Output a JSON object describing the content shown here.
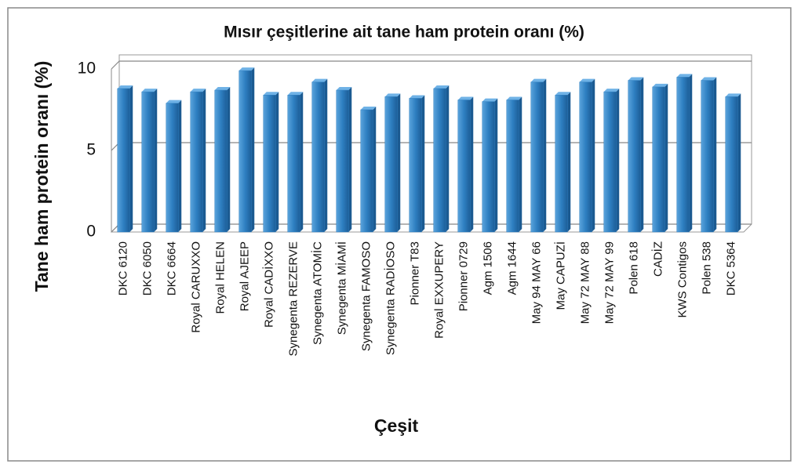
{
  "chart_data": {
    "type": "bar",
    "title": "Mısır çeşitlerine ait tane ham protein oranı (%)",
    "x_label": "Çeşit",
    "y_label": "Tane ham protein oranı (%)",
    "categories": [
      "DKC 6120",
      "DKC 6050",
      "DKC 6664",
      "Royal CARUXXO",
      "Royal HELEN",
      "Royal AJEEP",
      "Royal CADİXXO",
      "Synegenta REZERVE",
      "Synegenta ATOMİC",
      "Synegenta MİAMİ",
      "Synegenta FAMOSO",
      "Synegenta RADİOSO",
      "Pionner T83",
      "Royal EXXUPERY",
      "Pionner 0729",
      "Agm 1506",
      "Agm 1644",
      "May 94 MAY 66",
      "May CAPUZİ",
      "May 72 MAY 88",
      "May 72 MAY 99",
      "Polen 618",
      "CADİZ",
      "KWS Contigos",
      "Polen 538",
      "DKC 5364"
    ],
    "values": [
      8.8,
      8.6,
      7.9,
      8.6,
      8.7,
      9.9,
      8.4,
      8.4,
      9.2,
      8.7,
      7.5,
      8.3,
      8.2,
      8.8,
      8.1,
      8.0,
      8.1,
      9.2,
      8.4,
      9.2,
      8.6,
      9.3,
      8.9,
      9.5,
      9.3,
      8.3
    ],
    "color": "#2e7fc1",
    "ylim": [
      0,
      10
    ],
    "yticks": [
      0,
      5,
      10
    ],
    "grid": true
  }
}
